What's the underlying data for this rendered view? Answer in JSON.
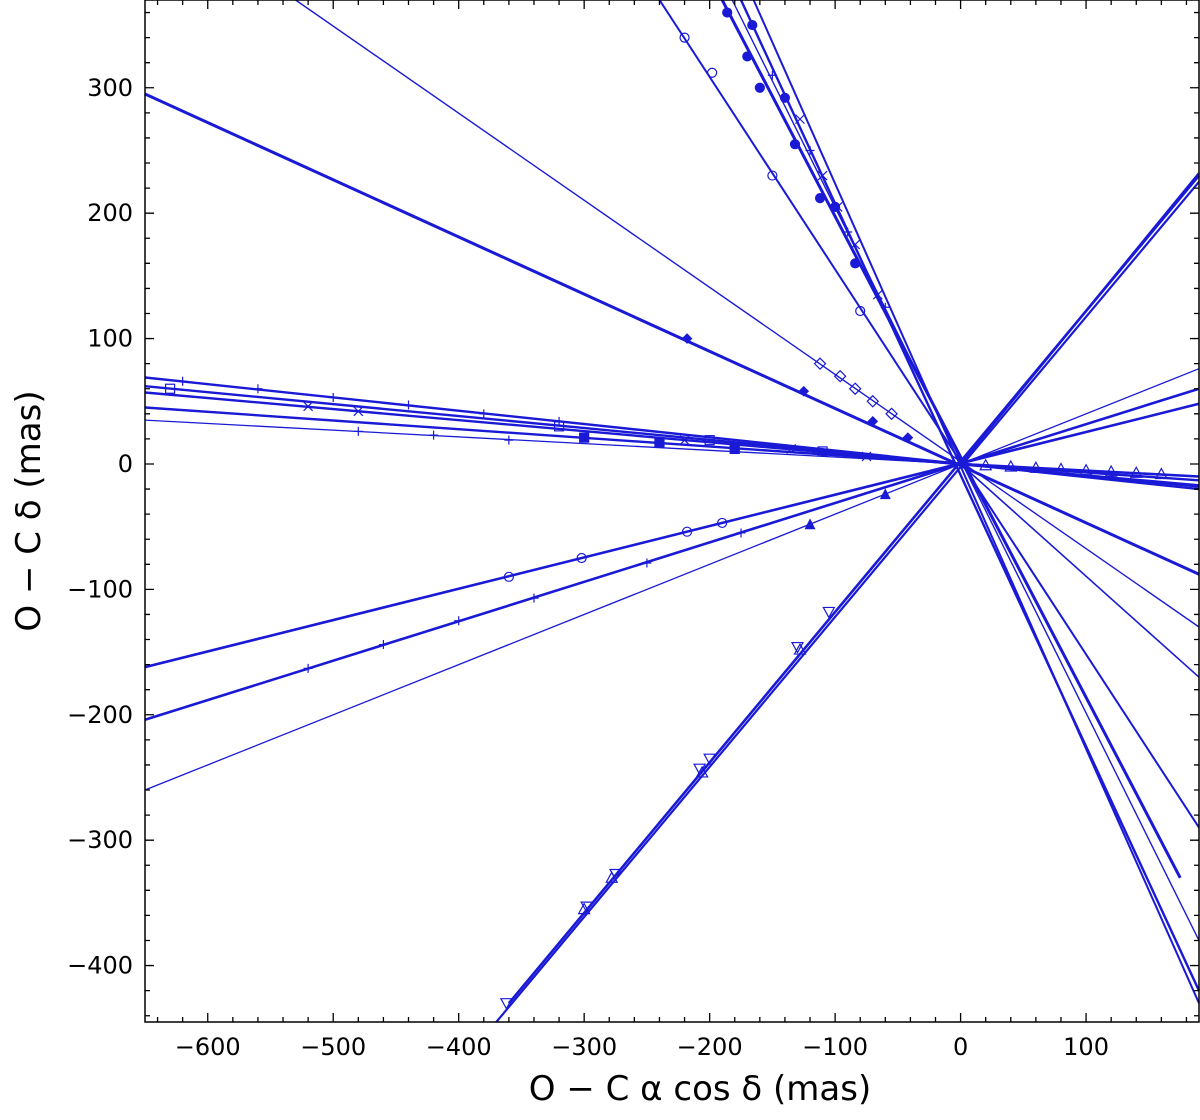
{
  "chart_data": {
    "type": "line",
    "title": "",
    "xlabel": "O − C  α cos δ (mas)",
    "ylabel": "O − C  δ (mas)",
    "xlim": [
      -650,
      190
    ],
    "ylim": [
      -445,
      370
    ],
    "xticks": [
      -600,
      -500,
      -400,
      -300,
      -200,
      -100,
      0,
      100
    ],
    "yticks": [
      -400,
      -300,
      -200,
      -100,
      0,
      100,
      200,
      300
    ],
    "xtick_labels": [
      "−600",
      "−500",
      "−400",
      "−300",
      "−200",
      "−100",
      "0",
      "100"
    ],
    "ytick_labels": [
      "−400",
      "−300",
      "−200",
      "−100",
      "0",
      "100",
      "200",
      "300"
    ],
    "grid": false,
    "color": "#1a1ad6",
    "series": [
      {
        "x": [
          -650,
          190
        ],
        "y": [
          295,
          -88
        ],
        "points": [
          [
            -218,
            100
          ],
          [
            -125,
            58
          ],
          [
            -70,
            34
          ],
          [
            -42,
            21
          ]
        ],
        "marker": "diamond-filled"
      },
      {
        "x": [
          -650,
          190
        ],
        "y": [
          -162,
          48
        ],
        "points": [
          [
            -360,
            -90
          ],
          [
            -302,
            -75
          ],
          [
            -218,
            -54
          ],
          [
            -190,
            -47
          ]
        ],
        "marker": "circle"
      },
      {
        "x": [
          -650,
          190
        ],
        "y": [
          -204,
          60
        ],
        "points": [
          [
            -520,
            -163
          ],
          [
            -460,
            -144
          ],
          [
            -400,
            -125
          ],
          [
            -340,
            -107
          ],
          [
            -250,
            -79
          ],
          [
            -175,
            -55
          ]
        ],
        "marker": "plus"
      },
      {
        "x": [
          -650,
          190
        ],
        "y": [
          -260,
          76
        ],
        "points": [
          [
            -120,
            -48
          ],
          [
            -60,
            -24
          ]
        ],
        "marker": "triangle-filled"
      },
      {
        "x": [
          -650,
          190
        ],
        "y": [
          69,
          -20
        ],
        "points": [
          [
            -620,
            66
          ],
          [
            -560,
            60
          ],
          [
            -500,
            53
          ],
          [
            -440,
            47
          ],
          [
            -380,
            40
          ],
          [
            -320,
            34
          ]
        ],
        "marker": "plus"
      },
      {
        "x": [
          -650,
          190
        ],
        "y": [
          62,
          -18
        ],
        "points": [
          [
            -630,
            60
          ],
          [
            -320,
            30
          ],
          [
            -200,
            19
          ],
          [
            -110,
            10
          ]
        ],
        "marker": "square"
      },
      {
        "x": [
          -650,
          190
        ],
        "y": [
          57,
          -17
        ],
        "points": [
          [
            -520,
            46
          ],
          [
            -480,
            42
          ],
          [
            -220,
            19
          ],
          [
            -135,
            12
          ],
          [
            -75,
            6
          ]
        ],
        "marker": "x"
      },
      {
        "x": [
          -650,
          190
        ],
        "y": [
          45,
          -13
        ],
        "points": [
          [
            -300,
            21
          ],
          [
            -240,
            17
          ],
          [
            -180,
            12
          ]
        ],
        "marker": "square-filled"
      },
      {
        "x": [
          -650,
          190
        ],
        "y": [
          35,
          -10
        ],
        "points": [
          [
            -480,
            26
          ],
          [
            -420,
            23
          ],
          [
            -360,
            19
          ]
        ],
        "marker": "plus"
      },
      {
        "x": [
          -360,
          190
        ],
        "y": [
          -430,
          230
        ],
        "points": [
          [
            -362,
            -430
          ],
          [
            -298,
            -353
          ],
          [
            -275,
            -327
          ],
          [
            -208,
            -243
          ],
          [
            -200,
            -235
          ],
          [
            -130,
            -146
          ],
          [
            -105,
            -118
          ]
        ],
        "marker": "triangle-down"
      },
      {
        "x": [
          -370,
          190
        ],
        "y": [
          -445,
          225
        ],
        "points": [
          [
            -300,
            -355
          ],
          [
            -278,
            -330
          ],
          [
            -206,
            -246
          ],
          [
            -128,
            -148
          ]
        ],
        "marker": "triangle"
      },
      {
        "x": [
          -530,
          190
        ],
        "y": [
          370,
          -130
        ],
        "points": [
          [
            -112,
            80
          ],
          [
            -96,
            70
          ],
          [
            -84,
            60
          ],
          [
            -70,
            50
          ],
          [
            -55,
            40
          ]
        ],
        "marker": "diamond"
      },
      {
        "x": [
          -240,
          190
        ],
        "y": [
          370,
          -290
        ],
        "points": [
          [
            -220,
            340
          ],
          [
            -198,
            312
          ],
          [
            -150,
            230
          ],
          [
            -80,
            122
          ]
        ],
        "marker": "circle"
      },
      {
        "x": [
          -190,
          175
        ],
        "y": [
          370,
          -330
        ],
        "points": [
          [
            -186,
            360
          ],
          [
            -170,
            325
          ],
          [
            -160,
            300
          ],
          [
            -132,
            255
          ],
          [
            -112,
            212
          ],
          [
            -84,
            160
          ]
        ],
        "marker": "circle-filled"
      },
      {
        "x": [
          -165,
          190
        ],
        "y": [
          370,
          -430
        ],
        "points": [
          [
            -128,
            275
          ],
          [
            -110,
            230
          ],
          [
            -98,
            205
          ],
          [
            -84,
            175
          ],
          [
            -66,
            135
          ]
        ],
        "marker": "x"
      },
      {
        "x": [
          -182,
          190
        ],
        "y": [
          370,
          -380
        ],
        "points": [
          [
            -150,
            310
          ],
          [
            -120,
            250
          ],
          [
            -90,
            185
          ],
          [
            -60,
            125
          ]
        ],
        "marker": "plus"
      },
      {
        "x": [
          -175,
          190
        ],
        "y": [
          370,
          -420
        ],
        "points": [
          [
            -166,
            350
          ],
          [
            -140,
            292
          ],
          [
            -100,
            205
          ]
        ],
        "marker": "circle-filled"
      },
      {
        "x": [
          0,
          190
        ],
        "y": [
          0,
          232
        ],
        "points": [],
        "marker": "none"
      },
      {
        "x": [
          0,
          190
        ],
        "y": [
          0,
          -170
        ],
        "points": [],
        "marker": "none"
      },
      {
        "x": [
          0,
          190
        ],
        "y": [
          0,
          -10
        ],
        "points": [
          [
            20,
            -1
          ],
          [
            40,
            -2
          ],
          [
            60,
            -3
          ],
          [
            80,
            -4
          ],
          [
            100,
            -5
          ],
          [
            120,
            -6
          ],
          [
            140,
            -7
          ],
          [
            160,
            -8
          ]
        ],
        "marker": "triangle"
      }
    ]
  }
}
